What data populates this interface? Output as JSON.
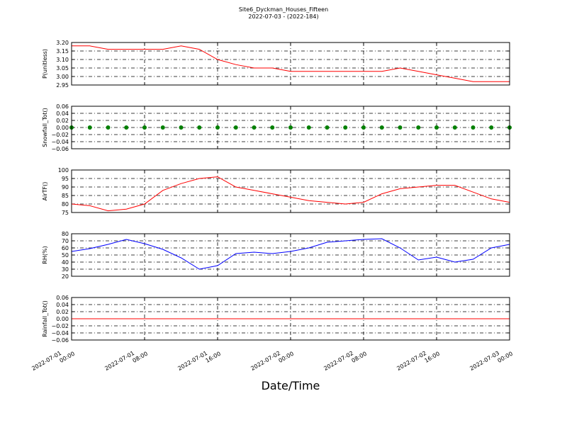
{
  "title": "Site6_Dyckman_Houses_Fifteen",
  "subtitle": "2022-07-03 - (2022-184)",
  "xlabel": "Date/Time",
  "x": [
    "2022-07-01 00:00",
    "2022-07-01 02:00",
    "2022-07-01 04:00",
    "2022-07-01 06:00",
    "2022-07-01 08:00",
    "2022-07-01 10:00",
    "2022-07-01 12:00",
    "2022-07-01 14:00",
    "2022-07-01 16:00",
    "2022-07-01 18:00",
    "2022-07-01 20:00",
    "2022-07-01 22:00",
    "2022-07-02 00:00",
    "2022-07-02 02:00",
    "2022-07-02 04:00",
    "2022-07-02 06:00",
    "2022-07-02 08:00",
    "2022-07-02 10:00",
    "2022-07-02 12:00",
    "2022-07-02 14:00",
    "2022-07-02 16:00",
    "2022-07-02 18:00",
    "2022-07-02 20:00",
    "2022-07-02 22:00",
    "2022-07-03 00:00"
  ],
  "xlim": [
    "2022-07-01 00:00",
    "2022-07-03 00:00"
  ],
  "xticks": [
    "2022-07-01 00:00",
    "2022-07-01 08:00",
    "2022-07-01 16:00",
    "2022-07-02 00:00",
    "2022-07-02 08:00",
    "2022-07-02 16:00",
    "2022-07-03 00:00"
  ],
  "grid": true,
  "chart_data": [
    {
      "type": "line",
      "ylabel": "P(unitless)",
      "ylim": [
        2.95,
        3.2
      ],
      "yticks": [
        2.95,
        {
          "value": 3.0,
          "label": "3.00"
        },
        3.05,
        {
          "value": 3.1,
          "label": "3.10"
        },
        3.15,
        {
          "value": 3.2,
          "label": "3.20"
        }
      ],
      "series": [
        {
          "color": "#ff0000",
          "values": [
            3.18,
            3.18,
            3.16,
            3.16,
            3.16,
            3.16,
            3.18,
            3.16,
            3.1,
            3.07,
            3.05,
            3.05,
            3.03,
            3.03,
            3.03,
            3.03,
            3.03,
            3.03,
            3.05,
            3.03,
            3.01,
            2.99,
            2.97,
            2.97,
            2.97
          ]
        }
      ]
    },
    {
      "type": "scatter",
      "ylabel": "Snowfall_Tot()",
      "ylim": [
        -0.06,
        0.06
      ],
      "yticks": [
        {
          "value": -0.06,
          "label": "−0.06"
        },
        {
          "value": -0.04,
          "label": "−0.04"
        },
        {
          "value": -0.02,
          "label": "−0.02"
        },
        {
          "value": 0,
          "label": "0.00"
        },
        0.02,
        0.04,
        0.06
      ],
      "series": [
        {
          "color": "#008000",
          "values": [
            0,
            0,
            0,
            0,
            0,
            0,
            0,
            0,
            0,
            0,
            0,
            0,
            0,
            0,
            0,
            0,
            0,
            0,
            0,
            0,
            0,
            0,
            0,
            0,
            0
          ]
        }
      ]
    },
    {
      "type": "line",
      "ylabel": "AirTF()",
      "ylim": [
        75,
        100
      ],
      "yticks": [
        75,
        80,
        85,
        90,
        95,
        100
      ],
      "series": [
        {
          "color": "#ff0000",
          "values": [
            80,
            79,
            76,
            77,
            80,
            88,
            92,
            95,
            96,
            90,
            88,
            86,
            84,
            82,
            81,
            80,
            81,
            86,
            89,
            90,
            91,
            91,
            87,
            83,
            81
          ]
        }
      ]
    },
    {
      "type": "line",
      "ylabel": "RH(%)",
      "ylim": [
        20,
        80
      ],
      "yticks": [
        20,
        30,
        40,
        50,
        60,
        70,
        80
      ],
      "series": [
        {
          "color": "#0000ff",
          "values": [
            55,
            59,
            65,
            72,
            66,
            58,
            46,
            30,
            35,
            52,
            54,
            52,
            55,
            60,
            68,
            70,
            72,
            73,
            60,
            43,
            47,
            40,
            44,
            60,
            65
          ]
        }
      ]
    },
    {
      "type": "line",
      "ylabel": "Rainfall_Tot()",
      "ylim": [
        -0.06,
        0.06
      ],
      "yticks": [
        {
          "value": -0.06,
          "label": "−0.06"
        },
        {
          "value": -0.04,
          "label": "−0.04"
        },
        {
          "value": -0.02,
          "label": "−0.02"
        },
        {
          "value": 0,
          "label": "0.00"
        },
        0.02,
        0.04,
        0.06
      ],
      "series": [
        {
          "color": "#ff0000",
          "values": [
            0,
            0,
            0,
            0,
            0,
            0,
            0,
            0,
            0,
            0,
            0,
            0,
            0,
            0,
            0,
            0,
            0,
            0,
            0,
            0,
            0,
            0,
            0,
            0,
            0
          ]
        }
      ]
    }
  ]
}
